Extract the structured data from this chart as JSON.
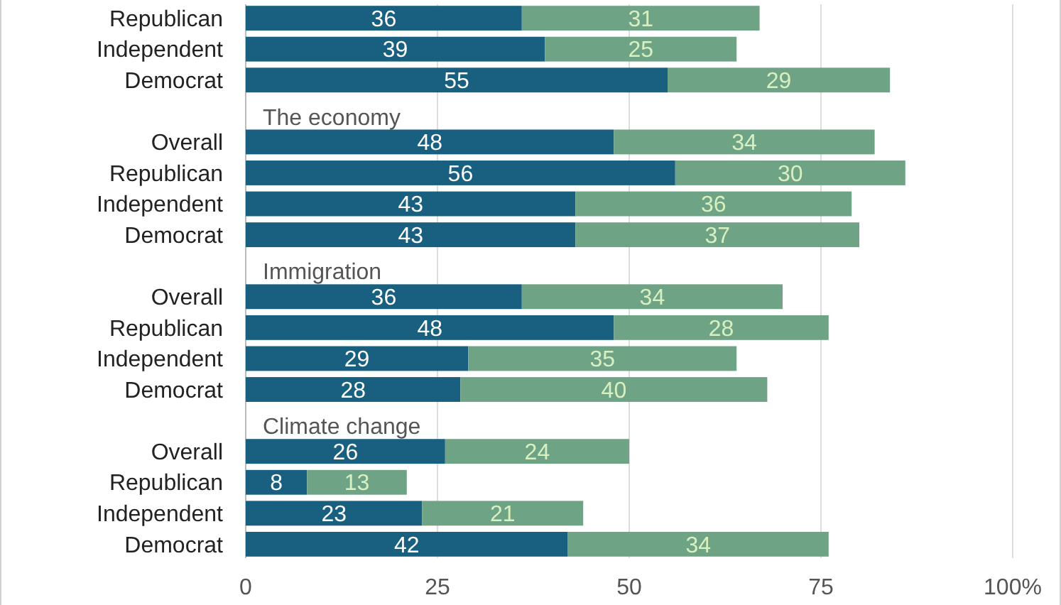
{
  "chart_data": {
    "type": "bar",
    "orientation": "horizontal",
    "stacked": true,
    "data_labels": true,
    "grid": "x",
    "categories": [
      "Republican",
      "Independent",
      "Democrat",
      "The economy",
      "Overall",
      "Republican",
      "Independent",
      "Democrat",
      "Immigration",
      "Overall",
      "Republican",
      "Independent",
      "Democrat",
      "Climate change",
      "Overall",
      "Republican",
      "Independent",
      "Democrat"
    ],
    "series": [
      {
        "color": "#185f80",
        "values": [
          36,
          39,
          55,
          null,
          48,
          56,
          43,
          43,
          null,
          36,
          48,
          29,
          28,
          null,
          26,
          8,
          23,
          42
        ]
      },
      {
        "color": "#6fa386",
        "values": [
          31,
          25,
          29,
          null,
          34,
          30,
          36,
          37,
          null,
          34,
          28,
          35,
          40,
          null,
          24,
          13,
          21,
          34
        ]
      }
    ],
    "xlim": [
      0,
      100
    ],
    "xticks": [
      0,
      25,
      50,
      75,
      {
        "value": 100,
        "label": "100%"
      }
    ]
  }
}
